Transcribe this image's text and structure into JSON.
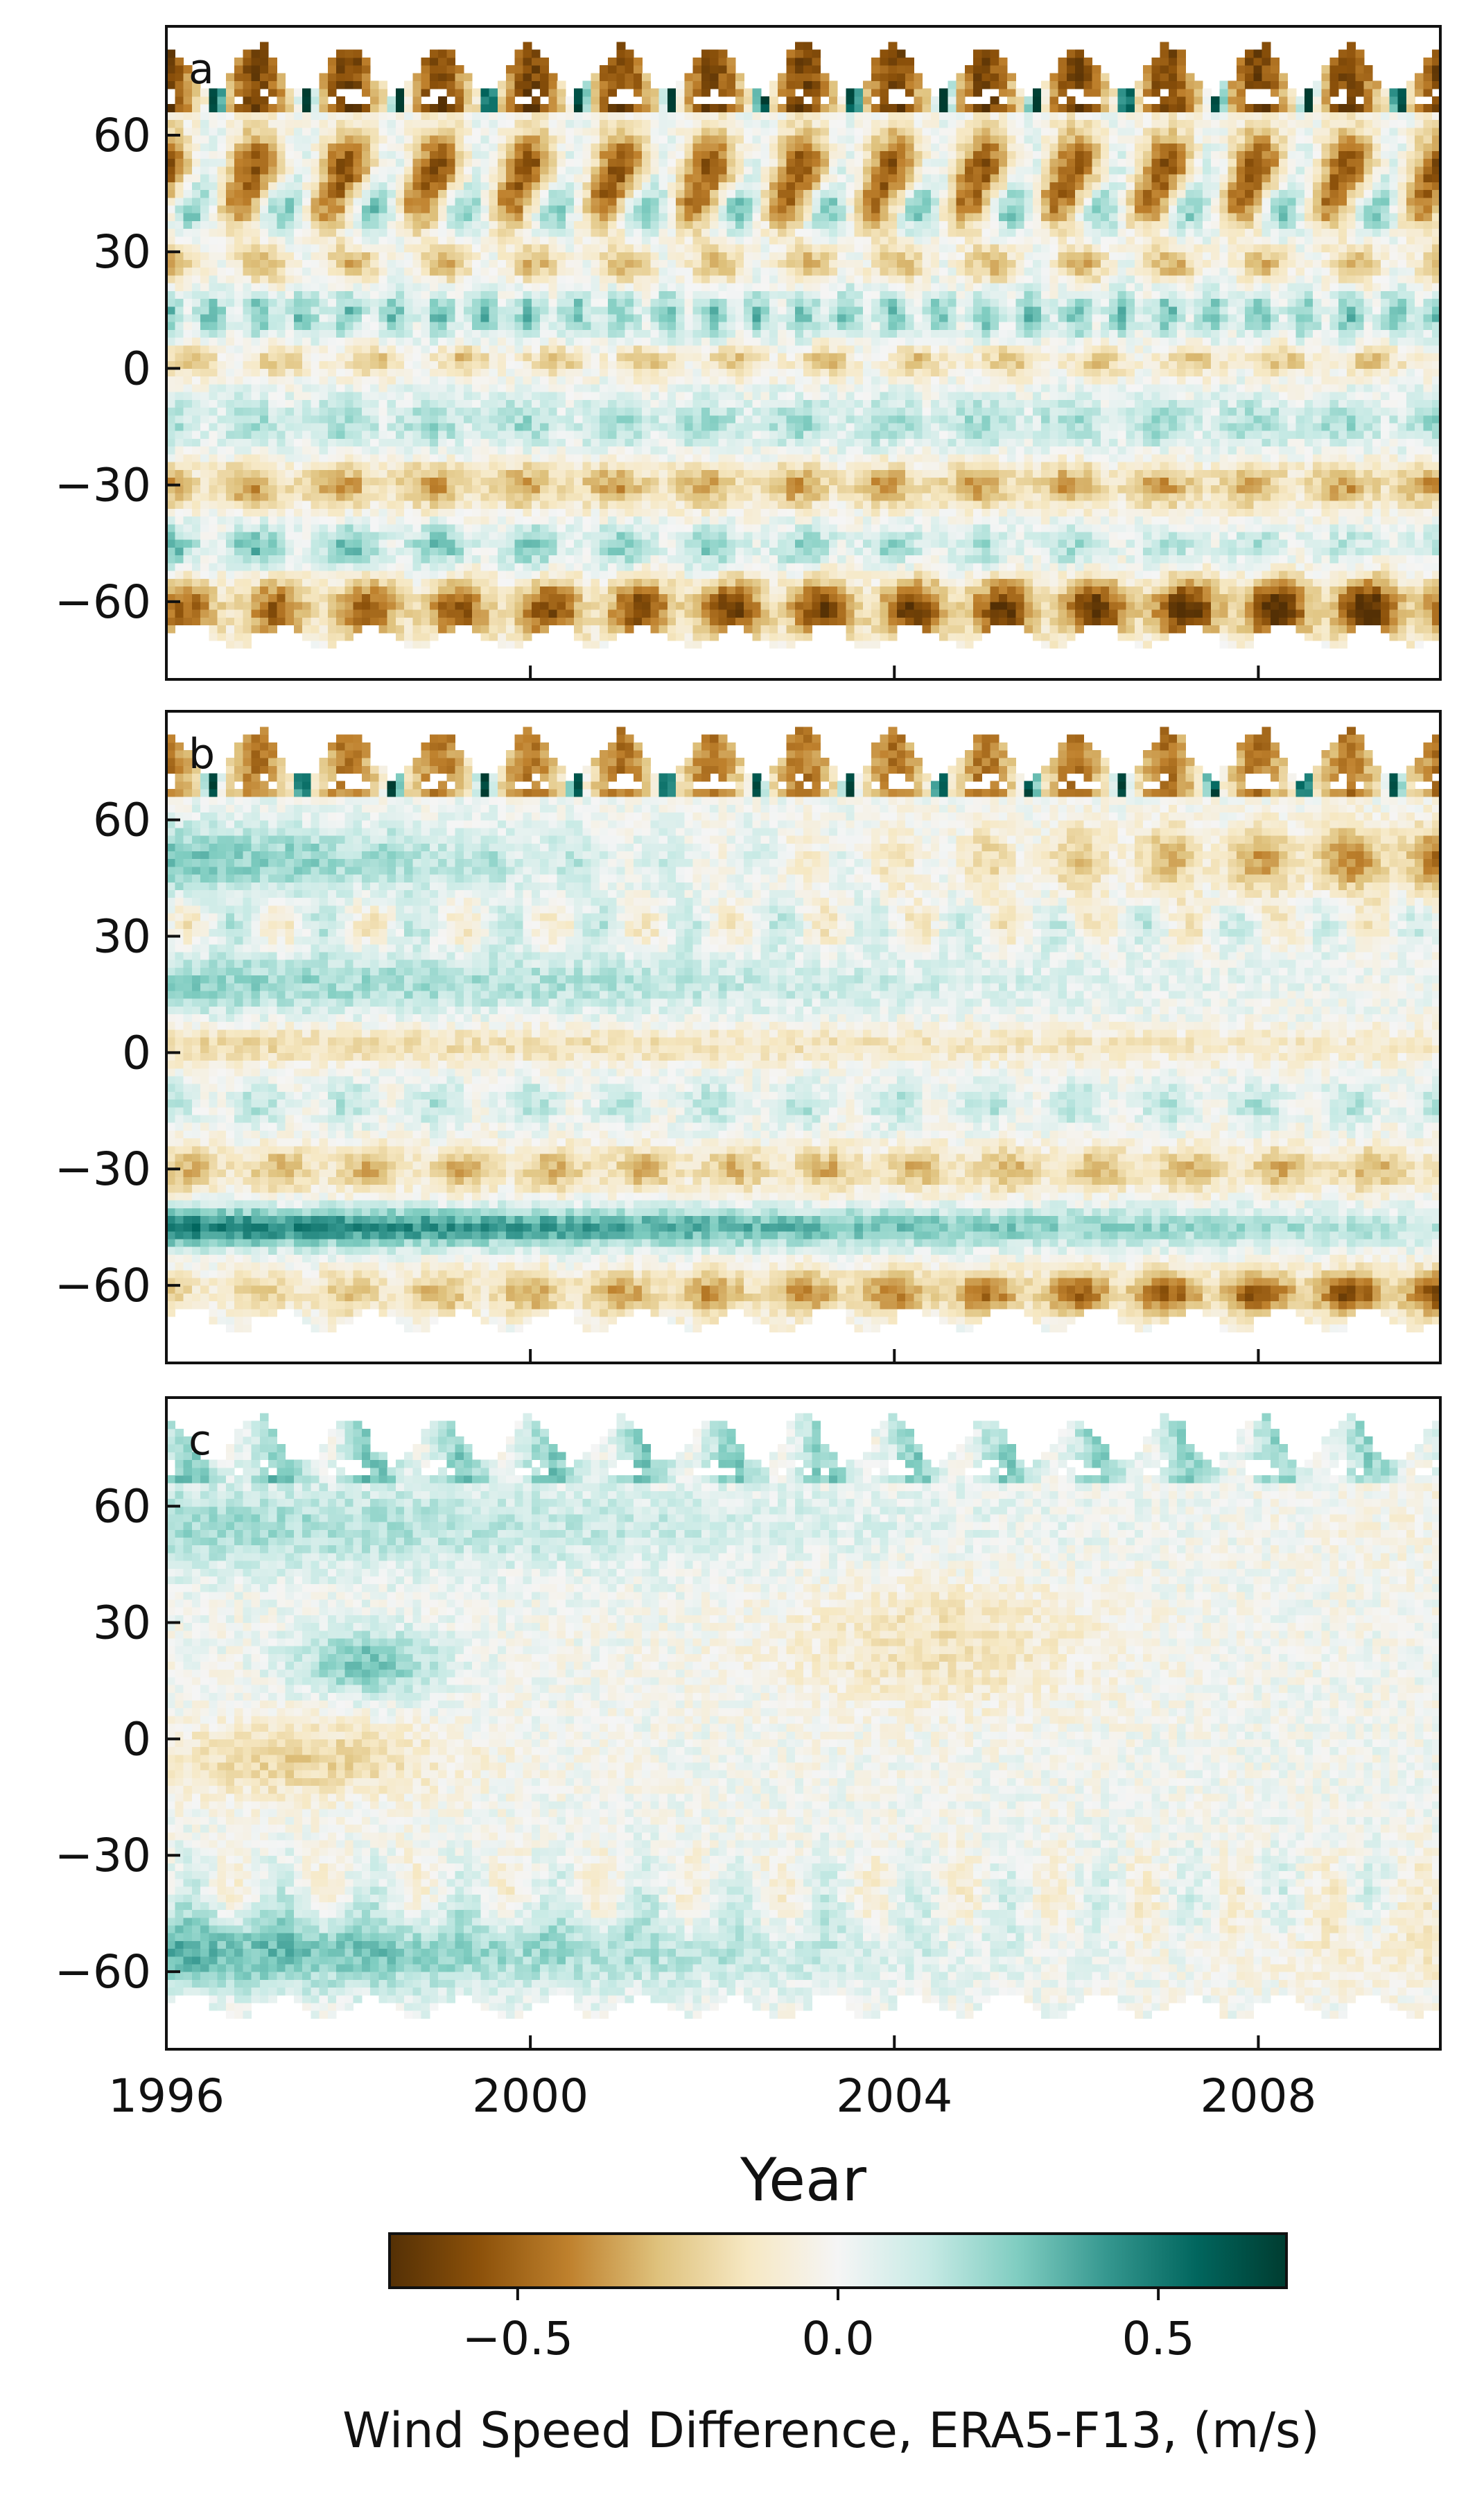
{
  "chart_data": {
    "type": "heatmap",
    "panels": [
      {
        "label": "a",
        "field": "diff_a"
      },
      {
        "label": "b",
        "field": "diff_b"
      },
      {
        "label": "c",
        "field": "diff_c"
      }
    ],
    "x": {
      "label": "Year",
      "range": [
        1996,
        2010
      ],
      "ticks": [
        1996,
        2000,
        2004,
        2008
      ],
      "tick_labels": [
        "1996",
        "2000",
        "2004",
        "2008"
      ]
    },
    "y": {
      "label": "",
      "range": [
        -80,
        88
      ],
      "ticks": [
        60,
        30,
        0,
        -30,
        -60
      ],
      "tick_labels": [
        "60",
        "30",
        "0",
        "−30",
        "−60"
      ]
    },
    "colorbar": {
      "label": "Wind Speed Difference, ERA5-F13, (m/s)",
      "range": [
        -0.7,
        0.7
      ],
      "ticks": [
        -0.5,
        0.0,
        0.5
      ],
      "tick_labels": [
        "−0.5",
        "0.0",
        "0.5"
      ],
      "colormap": "BrBG",
      "colors": [
        "#543005",
        "#8c510a",
        "#bf812d",
        "#dfc27d",
        "#f6e8c3",
        "#f5f5f5",
        "#c7eae5",
        "#80cdc1",
        "#35978f",
        "#01665e",
        "#003c30"
      ]
    },
    "grid": false
  }
}
